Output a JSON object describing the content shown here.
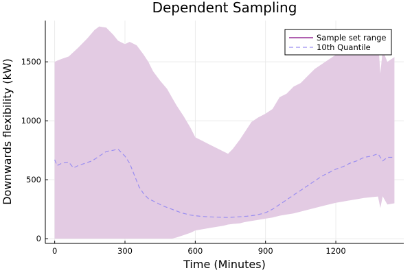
{
  "chart_data": {
    "type": "area",
    "title": "Dependent Sampling",
    "xlabel": "Time (Minutes)",
    "ylabel": "Downwards flexibility (kW)",
    "xlim": [
      -40,
      1490
    ],
    "ylim": [
      -40,
      1850
    ],
    "xticks": [
      0,
      300,
      600,
      900,
      1200
    ],
    "yticks": [
      0,
      500,
      1000,
      1500
    ],
    "grid": true,
    "legend_position": "top-right",
    "colors": {
      "band": "#e3cbe3",
      "band_line": "#800080",
      "quantile": "#9a8ef0"
    },
    "series": [
      {
        "name": "Sample set range",
        "kind": "band",
        "x": [
          0,
          10,
          30,
          60,
          100,
          140,
          170,
          190,
          220,
          250,
          270,
          290,
          300,
          320,
          350,
          380,
          400,
          420,
          450,
          480,
          500,
          520,
          550,
          580,
          600,
          630,
          660,
          690,
          720,
          740,
          760,
          790,
          810,
          840,
          870,
          900,
          930,
          960,
          990,
          1020,
          1050,
          1080,
          1110,
          1140,
          1170,
          1200,
          1230,
          1260,
          1290,
          1320,
          1350,
          1380,
          1390,
          1400,
          1420,
          1450
        ],
        "upper": [
          1500,
          1510,
          1525,
          1545,
          1620,
          1700,
          1770,
          1800,
          1790,
          1730,
          1680,
          1660,
          1650,
          1670,
          1640,
          1560,
          1500,
          1420,
          1340,
          1270,
          1200,
          1130,
          1040,
          940,
          860,
          830,
          800,
          770,
          740,
          720,
          760,
          840,
          900,
          990,
          1030,
          1060,
          1100,
          1200,
          1230,
          1290,
          1320,
          1380,
          1440,
          1480,
          1520,
          1560,
          1590,
          1620,
          1640,
          1660,
          1690,
          1700,
          1400,
          1600,
          1500,
          1540
        ],
        "lower": [
          0,
          0,
          0,
          0,
          0,
          0,
          0,
          0,
          0,
          0,
          0,
          0,
          0,
          0,
          0,
          0,
          0,
          0,
          0,
          0,
          0,
          10,
          30,
          50,
          70,
          80,
          90,
          100,
          110,
          120,
          125,
          130,
          140,
          150,
          160,
          170,
          180,
          195,
          205,
          215,
          230,
          245,
          260,
          275,
          290,
          305,
          315,
          325,
          335,
          345,
          352,
          358,
          260,
          360,
          290,
          300
        ]
      },
      {
        "name": "10th Quantile",
        "kind": "line",
        "x": [
          0,
          10,
          30,
          60,
          80,
          100,
          130,
          160,
          190,
          220,
          250,
          270,
          280,
          300,
          320,
          340,
          360,
          380,
          400,
          430,
          460,
          500,
          540,
          580,
          620,
          660,
          700,
          740,
          780,
          820,
          860,
          900,
          930,
          960,
          990,
          1020,
          1050,
          1080,
          1110,
          1140,
          1170,
          1200,
          1230,
          1260,
          1290,
          1320,
          1350,
          1380,
          1400,
          1420,
          1450
        ],
        "y": [
          670,
          620,
          640,
          650,
          600,
          620,
          640,
          660,
          700,
          740,
          750,
          760,
          740,
          700,
          640,
          540,
          440,
          380,
          340,
          310,
          280,
          250,
          220,
          200,
          190,
          185,
          182,
          180,
          185,
          190,
          200,
          220,
          250,
          290,
          330,
          370,
          410,
          450,
          490,
          530,
          560,
          590,
          610,
          640,
          660,
          690,
          700,
          720,
          660,
          690,
          690
        ]
      }
    ]
  }
}
